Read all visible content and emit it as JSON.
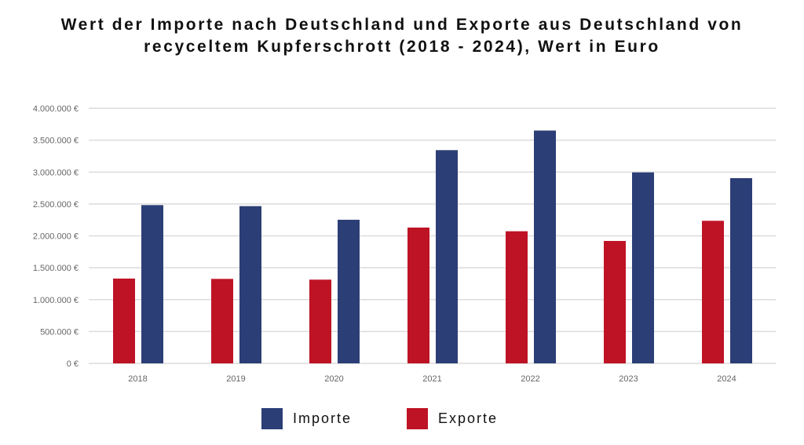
{
  "chart_data": {
    "type": "bar",
    "title": [
      "Wert der Importe nach Deutschland und Exporte aus Deutschland von",
      "recyceltem Kupferschrott (2018 - 2024), Wert in Euro"
    ],
    "xlabel": "",
    "ylabel": "",
    "categories": [
      "2018",
      "2019",
      "2020",
      "2021",
      "2022",
      "2023",
      "2024"
    ],
    "series": [
      {
        "name": "Exporte",
        "color": "#be1325",
        "values": [
          1330000,
          1325000,
          1313000,
          2130000,
          2072000,
          1920000,
          2236000
        ]
      },
      {
        "name": "Importe",
        "color": "#2c3e76",
        "values": [
          2482000,
          2466000,
          2252000,
          3344000,
          3651000,
          2995000,
          2905000
        ]
      }
    ],
    "ylim": [
      0,
      4000000
    ],
    "yticks": [
      0,
      500000,
      1000000,
      1500000,
      2000000,
      2500000,
      3000000,
      3500000,
      4000000
    ],
    "ytick_labels": [
      "0 €",
      "500.000 €",
      "1.000.000 €",
      "1.500.000 €",
      "2.000.000 €",
      "2.500.000 €",
      "3.000.000 €",
      "3.500.000 €",
      "4.000.000 €"
    ],
    "grid": true,
    "legend": {
      "placement": "bottom-center",
      "entries": [
        "Importe",
        "Exporte"
      ]
    }
  }
}
